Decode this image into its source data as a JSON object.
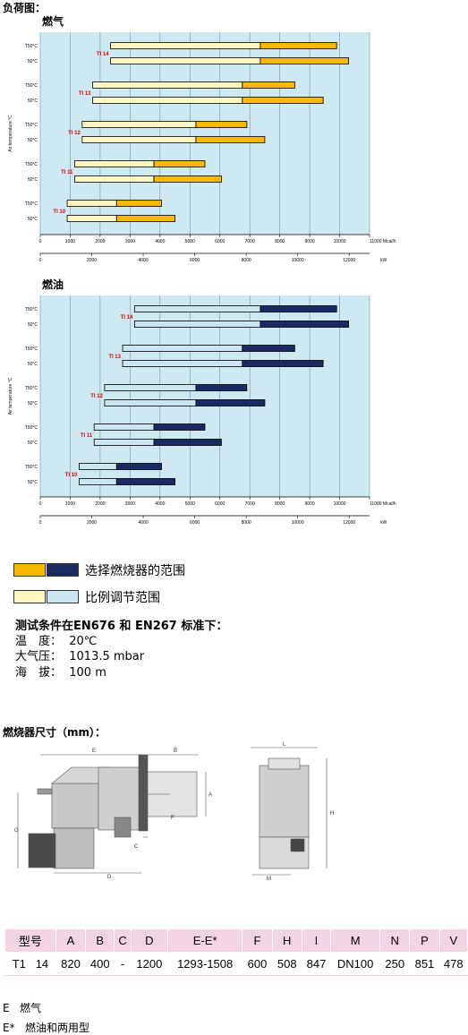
{
  "page_title": "负荷图：",
  "chart_data": [
    {
      "type": "range-bar",
      "title": "燃气",
      "ylabel": "Air temperature °C",
      "grid": true,
      "xlim": [
        0,
        11000
      ],
      "xticks": [
        0,
        1000,
        2000,
        3000,
        4000,
        5000,
        6000,
        7000,
        8000,
        9000,
        10000,
        {
          "value": 11000,
          "label": "11000 Mcal/h"
        }
      ],
      "x2lim": [
        0,
        12793
      ],
      "x2ticks": [
        0,
        2000,
        4000,
        6000,
        8000,
        10000,
        12000
      ],
      "x2label": "kW",
      "colors": {
        "background": "#cfe9f2",
        "modulation": "#fff6c4",
        "range": "#f6b800"
      },
      "groups": [
        {
          "name": "TI 14",
          "rows": [
            {
              "label": "T50°C",
              "min": 2350,
              "mid": 7350,
              "max": 9900
            },
            {
              "label": "50°C",
              "min": 2350,
              "mid": 7350,
              "max": 10300
            }
          ]
        },
        {
          "name": "TI 13",
          "rows": [
            {
              "label": "T50°C",
              "min": 1750,
              "mid": 6750,
              "max": 8500
            },
            {
              "label": "50°C",
              "min": 1750,
              "mid": 6750,
              "max": 9450
            }
          ]
        },
        {
          "name": "TI 12",
          "rows": [
            {
              "label": "T50°C",
              "min": 1400,
              "mid": 5200,
              "max": 6900
            },
            {
              "label": "50°C",
              "min": 1400,
              "mid": 5200,
              "max": 7500
            }
          ]
        },
        {
          "name": "TI 11",
          "rows": [
            {
              "label": "T50°C",
              "min": 1150,
              "mid": 3800,
              "max": 5500
            },
            {
              "label": "50°C",
              "min": 1150,
              "mid": 3800,
              "max": 6050
            }
          ]
        },
        {
          "name": "TI 10",
          "rows": [
            {
              "label": "T50°C",
              "min": 900,
              "mid": 2550,
              "max": 4050
            },
            {
              "label": "50°C",
              "min": 900,
              "mid": 2550,
              "max": 4500
            }
          ]
        }
      ]
    },
    {
      "type": "range-bar",
      "title": "燃油",
      "ylabel": "Air temperature °C",
      "grid": true,
      "xlim": [
        0,
        11000
      ],
      "xticks": [
        0,
        1000,
        2000,
        3000,
        4000,
        5000,
        6000,
        7000,
        8000,
        9000,
        10000,
        {
          "value": 11000,
          "label": "11000 Mcal/h"
        }
      ],
      "x2lim": [
        0,
        12793
      ],
      "x2ticks": [
        0,
        2000,
        4000,
        6000,
        8000,
        10000,
        12000
      ],
      "x2label": "kW",
      "colors": {
        "background": "#cfe9f2",
        "modulation": "#c9e6f1",
        "range": "#1b2a63"
      },
      "groups": [
        {
          "name": "TI 14",
          "rows": [
            {
              "label": "T50°C",
              "min": 3150,
              "mid": 7350,
              "max": 9900
            },
            {
              "label": "50°C",
              "min": 3150,
              "mid": 7350,
              "max": 10300
            }
          ]
        },
        {
          "name": "TI 13",
          "rows": [
            {
              "label": "T50°C",
              "min": 2750,
              "mid": 6750,
              "max": 8500
            },
            {
              "label": "50°C",
              "min": 2750,
              "mid": 6750,
              "max": 9450
            }
          ]
        },
        {
          "name": "TI 12",
          "rows": [
            {
              "label": "T50°C",
              "min": 2150,
              "mid": 5200,
              "max": 6900
            },
            {
              "label": "50°C",
              "min": 2150,
              "mid": 5200,
              "max": 7500
            }
          ]
        },
        {
          "name": "TI 11",
          "rows": [
            {
              "label": "T50°C",
              "min": 1800,
              "mid": 3800,
              "max": 5500
            },
            {
              "label": "50°C",
              "min": 1800,
              "mid": 3800,
              "max": 6050
            }
          ]
        },
        {
          "name": "TI 10",
          "rows": [
            {
              "label": "T50°C",
              "min": 1300,
              "mid": 2550,
              "max": 4050
            },
            {
              "label": "50°C",
              "min": 1300,
              "mid": 2550,
              "max": 4500
            }
          ]
        }
      ]
    }
  ],
  "legend": [
    {
      "label": "选择燃烧器的范围",
      "colors": [
        "#f6b800",
        "#1b2a63"
      ]
    },
    {
      "label": "比例调节范围",
      "colors": [
        "#fff6c4",
        "#c9e6f1"
      ]
    }
  ],
  "conditions": {
    "title": "测试条件在EN676 和 EN267 标准下：",
    "lines": [
      "温　度：  20℃",
      "大气压：  1013.5 mbar",
      "海　拔：  100 m"
    ]
  },
  "dimensions_title": "燃烧器尺寸（mm）：",
  "drawing": {
    "labels": [
      "E",
      "B",
      "A",
      "F",
      "C",
      "D",
      "G",
      "L",
      "H",
      "M"
    ]
  },
  "table": {
    "header": [
      "型号",
      "A",
      "B",
      "C",
      "D",
      "E-E*",
      "F",
      "H",
      "I",
      "M",
      "N",
      "P",
      "V"
    ],
    "rows": [
      [
        "T1   14",
        "820",
        "400",
        "-",
        "1200",
        "1293-1508",
        "600",
        "508",
        "847",
        "DN100",
        "250",
        "851",
        "478"
      ]
    ]
  },
  "notes": [
    "E   燃气",
    "E*   燃油和两用型"
  ]
}
